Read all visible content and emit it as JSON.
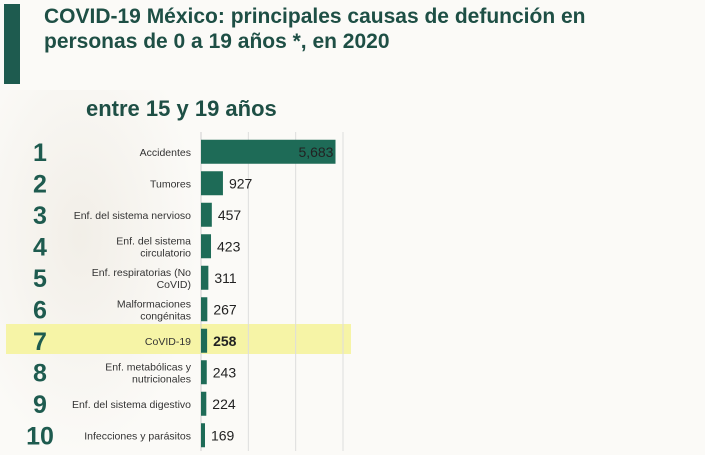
{
  "title": "COVID-19 México: principales causas de defunción en personas de 0 a 19 años *, en 2020",
  "subtitle": "entre 15 y 19 años",
  "colors": {
    "bar": "#1e6b57",
    "rank": "#1e5b4f",
    "highlight": "#f6f4a6",
    "accent": "#1e5b4f"
  },
  "chart_data": {
    "type": "bar",
    "orientation": "horizontal",
    "ranks": [
      "1",
      "2",
      "3",
      "4",
      "5",
      "6",
      "7",
      "8",
      "9",
      "10"
    ],
    "categories": [
      [
        "Accidentes"
      ],
      [
        "Tumores"
      ],
      [
        "Enf. del sistema nervioso"
      ],
      [
        "Enf. del sistema",
        "circulatorio"
      ],
      [
        "Enf. respiratorias (No",
        "CoVID)"
      ],
      [
        "Malformaciones",
        "congénitas"
      ],
      [
        "CoVID-19"
      ],
      [
        "Enf. metabólicas y",
        "nutricionales"
      ],
      [
        "Enf. del sistema digestivo"
      ],
      [
        "Infecciones y parásitos"
      ]
    ],
    "values": [
      5683,
      927,
      457,
      423,
      311,
      267,
      258,
      243,
      224,
      169
    ],
    "value_labels": [
      "5,683",
      "927",
      "457",
      "423",
      "311",
      "267",
      "258",
      "243",
      "224",
      "169"
    ],
    "highlighted_index": 6,
    "xlim": [
      0,
      6000
    ],
    "grid": true
  }
}
